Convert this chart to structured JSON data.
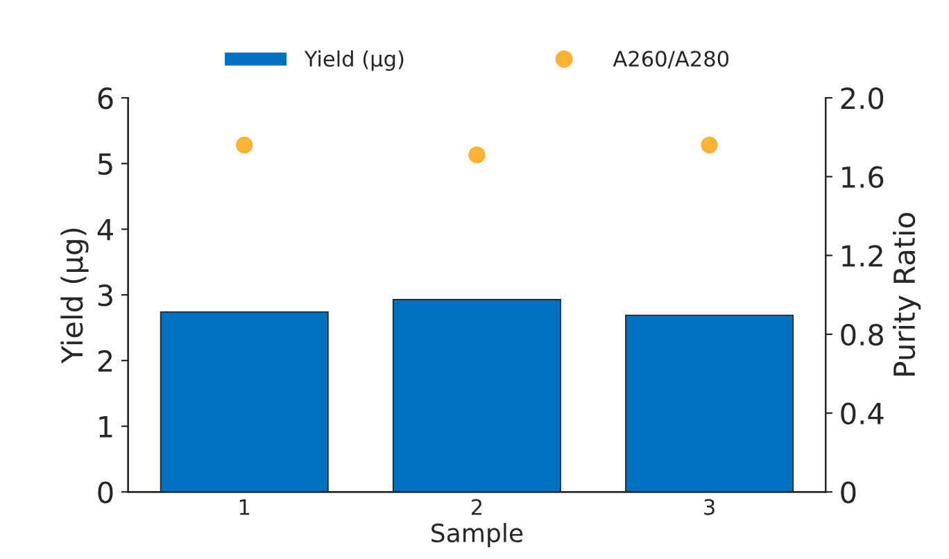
{
  "chart_data": {
    "type": "bar",
    "categories": [
      "1",
      "2",
      "3"
    ],
    "xlabel": "Sample",
    "ylabel": "Yield (µg)",
    "y2label": "Purity Ratio",
    "ylim": [
      0,
      6
    ],
    "yticks": [
      0,
      1,
      2,
      3,
      4,
      5,
      6
    ],
    "y2lim": [
      0,
      2
    ],
    "y2ticks": [
      0,
      {
        "value": 0.4,
        "label": "0.4"
      },
      {
        "value": 0.8,
        "label": "0.8"
      },
      {
        "value": 1.2,
        "label": "1.2"
      },
      {
        "value": 1.6,
        "label": "1.6"
      },
      {
        "value": 2,
        "label": "2.0"
      }
    ],
    "series": [
      {
        "name": "Yield (µg)",
        "color": "#0070c0",
        "values": [
          2.74,
          2.93,
          2.69
        ]
      },
      {
        "name": "A260/A280",
        "type": "scatter",
        "axis": "y2",
        "color": "#f9b233",
        "x": [
          "1",
          "2",
          "3"
        ],
        "values": [
          1.76,
          1.71,
          1.76
        ]
      }
    ],
    "legend": "top",
    "grid": false,
    "marker": "circle"
  }
}
